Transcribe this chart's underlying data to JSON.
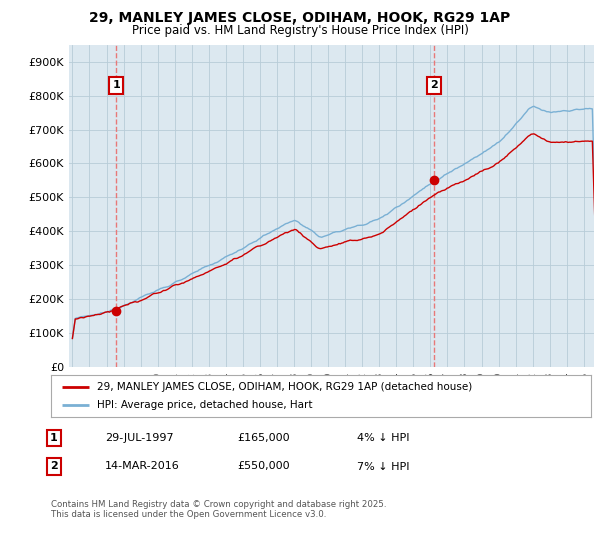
{
  "title": "29, MANLEY JAMES CLOSE, ODIHAM, HOOK, RG29 1AP",
  "subtitle": "Price paid vs. HM Land Registry's House Price Index (HPI)",
  "ylim": [
    0,
    950000
  ],
  "ytick_labels": [
    "£0",
    "£100K",
    "£200K",
    "£300K",
    "£400K",
    "£500K",
    "£600K",
    "£700K",
    "£800K",
    "£900K"
  ],
  "ytick_values": [
    0,
    100000,
    200000,
    300000,
    400000,
    500000,
    600000,
    700000,
    800000,
    900000
  ],
  "legend_line1": "29, MANLEY JAMES CLOSE, ODIHAM, HOOK, RG29 1AP (detached house)",
  "legend_line2": "HPI: Average price, detached house, Hart",
  "annotation1_label": "1",
  "annotation1_date": "29-JUL-1997",
  "annotation1_price": "£165,000",
  "annotation1_pct": "4% ↓ HPI",
  "annotation2_label": "2",
  "annotation2_date": "14-MAR-2016",
  "annotation2_price": "£550,000",
  "annotation2_pct": "7% ↓ HPI",
  "footer": "Contains HM Land Registry data © Crown copyright and database right 2025.\nThis data is licensed under the Open Government Licence v3.0.",
  "line_color_red": "#cc0000",
  "line_color_blue": "#7ab0d4",
  "dot_color": "#cc0000",
  "dashed_line_color": "#e87878",
  "plot_bg_color": "#dce8f0",
  "fig_bg_color": "#ffffff",
  "grid_color": "#b8ccd8",
  "x_start_year": 1995,
  "x_end_year": 2025,
  "purchase1_year": 1997.57,
  "purchase1_value": 165000,
  "purchase2_year": 2016.2,
  "purchase2_value": 550000
}
